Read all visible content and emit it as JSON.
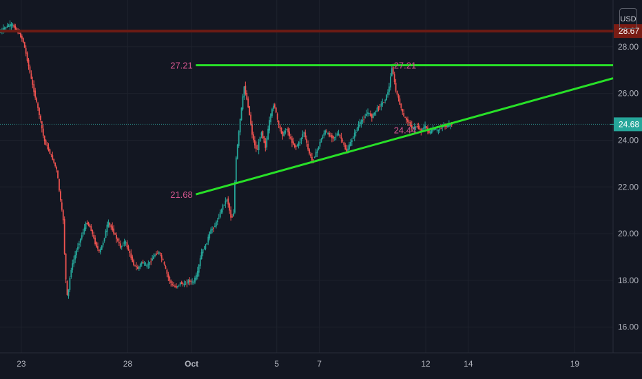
{
  "chart_data": {
    "type": "candlestick",
    "currency": "USD",
    "y_axis": {
      "ticks": [
        "16.00",
        "18.00",
        "20.00",
        "22.00",
        "24.00",
        "26.00",
        "28.00"
      ],
      "range": [
        14.9,
        30.0
      ]
    },
    "x_axis": {
      "ticks": [
        "23",
        "28",
        "Oct",
        "5",
        "7",
        "12",
        "14",
        "19"
      ],
      "tick_days": [
        23,
        28,
        31,
        35,
        37,
        42,
        44,
        49
      ],
      "range_days": [
        22,
        50.8
      ]
    },
    "price_tags": [
      {
        "label": "28.67",
        "value": 28.67,
        "color": "#7a1c14"
      },
      {
        "label": "24.68",
        "value": 24.68,
        "color": "#26a69a"
      }
    ],
    "horizontal_lines": [
      {
        "value": 28.67,
        "color": "#6b1b14",
        "x_start_day": 22
      },
      {
        "value": 27.21,
        "color": "#28e028",
        "x_start_day": 31.2
      }
    ],
    "last_price_line": {
      "value": 24.68,
      "color": "#2c8f8a"
    },
    "trendline": {
      "start": {
        "day": 31.2,
        "value": 21.68
      },
      "end": {
        "day": 50.8,
        "value": 26.65
      },
      "color": "#28e028"
    },
    "annotations": [
      {
        "text": "27.21",
        "day": 30,
        "value": 27.21
      },
      {
        "text": "21.68",
        "day": 30,
        "value": 21.68
      },
      {
        "text": "27.21",
        "day": 40.5,
        "value": 27.21
      },
      {
        "text": "24.44",
        "day": 40.5,
        "value": 24.44
      }
    ],
    "price_path": [
      [
        22.0,
        28.6
      ],
      [
        22.3,
        28.85
      ],
      [
        22.6,
        28.95
      ],
      [
        22.9,
        28.6
      ],
      [
        23.1,
        28.3
      ],
      [
        23.3,
        27.5
      ],
      [
        23.5,
        26.6
      ],
      [
        23.7,
        25.8
      ],
      [
        23.9,
        25.0
      ],
      [
        24.1,
        24.0
      ],
      [
        24.3,
        23.6
      ],
      [
        24.5,
        23.2
      ],
      [
        24.7,
        22.7
      ],
      [
        24.9,
        21.2
      ],
      [
        25.0,
        20.6
      ],
      [
        25.1,
        18.3
      ],
      [
        25.2,
        17.2
      ],
      [
        25.35,
        18.4
      ],
      [
        25.5,
        18.9
      ],
      [
        25.7,
        19.5
      ],
      [
        25.9,
        20.0
      ],
      [
        26.1,
        20.5
      ],
      [
        26.3,
        20.2
      ],
      [
        26.5,
        19.6
      ],
      [
        26.7,
        19.2
      ],
      [
        26.9,
        19.7
      ],
      [
        27.1,
        20.5
      ],
      [
        27.3,
        20.2
      ],
      [
        27.5,
        19.8
      ],
      [
        27.7,
        19.4
      ],
      [
        27.9,
        19.7
      ],
      [
        28.1,
        19.2
      ],
      [
        28.3,
        18.7
      ],
      [
        28.5,
        18.5
      ],
      [
        28.7,
        18.8
      ],
      [
        28.9,
        18.6
      ],
      [
        29.1,
        18.8
      ],
      [
        29.3,
        19.1
      ],
      [
        29.5,
        19.2
      ],
      [
        29.7,
        18.8
      ],
      [
        29.9,
        18.2
      ],
      [
        30.1,
        17.8
      ],
      [
        30.3,
        17.7
      ],
      [
        30.5,
        17.9
      ],
      [
        30.7,
        17.8
      ],
      [
        30.9,
        18.0
      ],
      [
        31.1,
        17.9
      ],
      [
        31.3,
        18.3
      ],
      [
        31.5,
        19.2
      ],
      [
        31.7,
        19.5
      ],
      [
        31.9,
        20.1
      ],
      [
        32.1,
        20.3
      ],
      [
        32.3,
        20.7
      ],
      [
        32.5,
        21.2
      ],
      [
        32.7,
        21.5
      ],
      [
        32.9,
        20.6
      ],
      [
        33.0,
        20.9
      ],
      [
        33.1,
        23.0
      ],
      [
        33.3,
        24.8
      ],
      [
        33.5,
        26.3
      ],
      [
        33.7,
        25.4
      ],
      [
        33.9,
        24.1
      ],
      [
        34.1,
        23.5
      ],
      [
        34.3,
        24.4
      ],
      [
        34.5,
        23.7
      ],
      [
        34.7,
        24.9
      ],
      [
        34.9,
        25.6
      ],
      [
        35.1,
        24.7
      ],
      [
        35.3,
        24.2
      ],
      [
        35.5,
        24.5
      ],
      [
        35.7,
        24.0
      ],
      [
        35.9,
        23.7
      ],
      [
        36.1,
        23.9
      ],
      [
        36.3,
        24.4
      ],
      [
        36.5,
        23.6
      ],
      [
        36.7,
        23.1
      ],
      [
        36.9,
        23.5
      ],
      [
        37.1,
        24.0
      ],
      [
        37.3,
        24.4
      ],
      [
        37.5,
        24.2
      ],
      [
        37.7,
        24.1
      ],
      [
        37.9,
        24.3
      ],
      [
        38.1,
        24.0
      ],
      [
        38.3,
        23.5
      ],
      [
        38.5,
        23.9
      ],
      [
        38.7,
        24.3
      ],
      [
        38.9,
        24.7
      ],
      [
        39.1,
        24.9
      ],
      [
        39.3,
        25.2
      ],
      [
        39.5,
        25.0
      ],
      [
        39.7,
        25.3
      ],
      [
        39.9,
        25.5
      ],
      [
        40.1,
        25.7
      ],
      [
        40.3,
        26.2
      ],
      [
        40.45,
        27.2
      ],
      [
        40.6,
        26.2
      ],
      [
        40.8,
        25.6
      ],
      [
        41.0,
        25.0
      ],
      [
        41.2,
        24.8
      ],
      [
        41.4,
        24.5
      ],
      [
        41.6,
        24.6
      ],
      [
        41.8,
        24.4
      ],
      [
        42.0,
        24.6
      ],
      [
        42.2,
        24.3
      ],
      [
        42.4,
        24.5
      ],
      [
        42.6,
        24.4
      ],
      [
        42.8,
        24.6
      ],
      [
        43.0,
        24.6
      ],
      [
        43.2,
        24.68
      ]
    ]
  }
}
